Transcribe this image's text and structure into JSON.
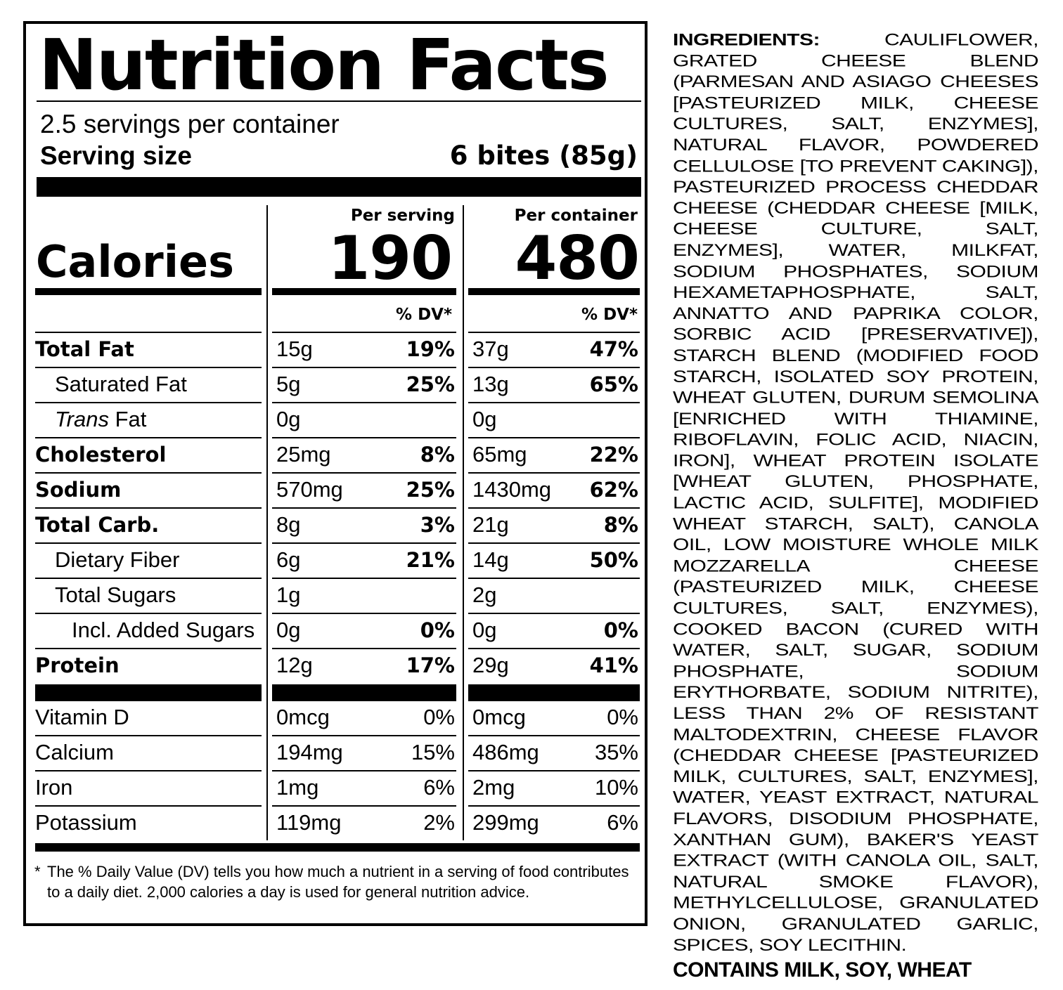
{
  "title": "Nutrition Facts",
  "servings_per_container": "2.5 servings per container",
  "serving_size_label": "Serving size",
  "serving_size_value": "6 bites (85g)",
  "header": {
    "per_serving": "Per serving",
    "per_container": "Per container"
  },
  "calories": {
    "label": "Calories",
    "per_serving": "190",
    "per_container": "480"
  },
  "dv_header": "% DV*",
  "nutrients": [
    {
      "label": "Total Fat",
      "serving_amount": "15g",
      "serving_dv": "19%",
      "container_amount": "37g",
      "container_dv": "47%"
    },
    {
      "label": "Saturated Fat",
      "serving_amount": "5g",
      "serving_dv": "25%",
      "container_amount": "13g",
      "container_dv": "65%"
    },
    {
      "label_italic": "Trans",
      "label": " Fat",
      "serving_amount": "0g",
      "serving_dv": "",
      "container_amount": "0g",
      "container_dv": ""
    },
    {
      "label": "Cholesterol",
      "serving_amount": "25mg",
      "serving_dv": "8%",
      "container_amount": "65mg",
      "container_dv": "22%"
    },
    {
      "label": "Sodium",
      "serving_amount": "570mg",
      "serving_dv": "25%",
      "container_amount": "1430mg",
      "container_dv": "62%"
    },
    {
      "label": "Total Carb.",
      "serving_amount": "8g",
      "serving_dv": "3%",
      "container_amount": "21g",
      "container_dv": "8%"
    },
    {
      "label": "Dietary Fiber",
      "serving_amount": "6g",
      "serving_dv": "21%",
      "container_amount": "14g",
      "container_dv": "50%"
    },
    {
      "label": "Total Sugars",
      "serving_amount": "1g",
      "serving_dv": "",
      "container_amount": "2g",
      "container_dv": ""
    },
    {
      "label": "Incl. Added Sugars",
      "serving_amount": "0g",
      "serving_dv": "0%",
      "container_amount": "0g",
      "container_dv": "0%"
    },
    {
      "label": "Protein",
      "serving_amount": "12g",
      "serving_dv": "17%",
      "container_amount": "29g",
      "container_dv": "41%"
    }
  ],
  "vitamins": [
    {
      "label": "Vitamin D",
      "serving_amount": "0mcg",
      "serving_dv": "0%",
      "container_amount": "0mcg",
      "container_dv": "0%"
    },
    {
      "label": "Calcium",
      "serving_amount": "194mg",
      "serving_dv": "15%",
      "container_amount": "486mg",
      "container_dv": "35%"
    },
    {
      "label": "Iron",
      "serving_amount": "1mg",
      "serving_dv": "6%",
      "container_amount": "2mg",
      "container_dv": "10%"
    },
    {
      "label": "Potassium",
      "serving_amount": "119mg",
      "serving_dv": "2%",
      "container_amount": "299mg",
      "container_dv": "6%"
    }
  ],
  "footnote_marker": "*",
  "footnote": "The % Daily Value (DV) tells you how much a nutrient in a serving of food contributes to a daily diet. 2,000 calories a day is used for general nutrition advice.",
  "ingredients_label": "INGREDIENTS:",
  "ingredients_text": "CAULIFLOWER, GRATED CHEESE BLEND (PARMESAN AND ASIAGO CHEESES [PASTEURIZED MILK, CHEESE CULTURES, SALT, ENZYMES], NATURAL FLAVOR, POWDERED CELLULOSE [TO PREVENT CAKING]), PASTEURIZED PROCESS CHEDDAR CHEESE (CHEDDAR CHEESE [MILK, CHEESE CULTURE, SALT, ENZYMES], WATER, MILKFAT, SODIUM PHOSPHATES, SODIUM HEXAMETAPHOSPHATE, SALT, ANNATTO AND PAPRIKA COLOR, SORBIC ACID [PRESERVATIVE]), STARCH BLEND (MODIFIED FOOD STARCH, ISOLATED SOY PROTEIN, WHEAT GLUTEN, DURUM SEMOLINA [ENRICHED WITH THIAMINE, RIBOFLAVIN, FOLIC ACID, NIACIN, IRON], WHEAT PROTEIN ISOLATE [WHEAT GLUTEN, PHOSPHATE, LACTIC ACID, SULFITE], MODIFIED WHEAT STARCH, SALT), CANOLA OIL, LOW MOISTURE WHOLE MILK MOZZARELLA CHEESE (PASTEURIZED MILK, CHEESE CULTURES, SALT, ENZYMES), COOKED BACON (CURED WITH WATER, SALT, SUGAR, SODIUM PHOSPHATE, SODIUM ERYTHORBATE, SODIUM NITRITE), LESS THAN 2% OF RESISTANT MALTODEXTRIN, CHEESE FLAVOR (CHEDDAR CHEESE [PASTEURIZED MILK, CULTURES, SALT, ENZYMES], WATER, YEAST EXTRACT, NATURAL FLAVORS, DISODIUM PHOSPHATE, XANTHAN GUM), BAKER'S YEAST EXTRACT (WITH CANOLA OIL, SALT, NATURAL SMOKE FLAVOR), METHYLCELLULOSE, GRANULATED ONION, GRANULATED GARLIC, SPICES, SOY LECITHIN.",
  "contains": "CONTAINS MILK, SOY, WHEAT"
}
